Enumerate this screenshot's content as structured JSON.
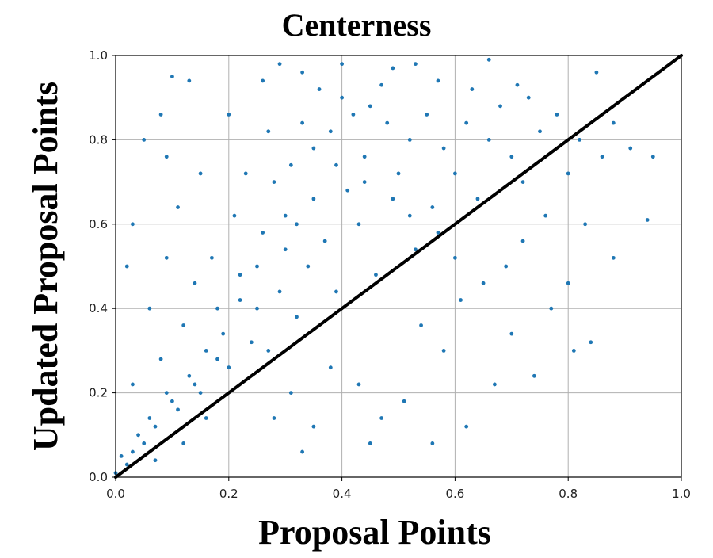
{
  "chart_data": {
    "type": "scatter",
    "title": "Centerness",
    "xlabel": "Proposal Points",
    "ylabel": "Updated Proposal Points",
    "xlim": [
      0.0,
      1.0
    ],
    "ylim": [
      0.0,
      1.0
    ],
    "xticks": [
      "0.0",
      "0.2",
      "0.4",
      "0.6",
      "0.8",
      "1.0"
    ],
    "yticks": [
      "0.0",
      "0.2",
      "0.4",
      "0.6",
      "0.8",
      "1.0"
    ],
    "grid": true,
    "colors": {
      "points": "#1f77b4",
      "reference_line": "#000000",
      "grid": "#b0b0b0"
    },
    "reference_line": {
      "x": [
        0.0,
        1.0
      ],
      "y": [
        0.0,
        1.0
      ]
    },
    "series": [
      {
        "points": [
          [
            0.42,
            0.86
          ],
          [
            0.38,
            0.82
          ],
          [
            0.45,
            0.88
          ],
          [
            0.35,
            0.78
          ],
          [
            0.48,
            0.84
          ],
          [
            0.31,
            0.74
          ],
          [
            0.52,
            0.8
          ],
          [
            0.4,
            0.9
          ],
          [
            0.28,
            0.7
          ],
          [
            0.55,
            0.86
          ],
          [
            0.36,
            0.92
          ],
          [
            0.44,
            0.76
          ],
          [
            0.33,
            0.84
          ],
          [
            0.58,
            0.78
          ],
          [
            0.47,
            0.93
          ],
          [
            0.3,
            0.62
          ],
          [
            0.41,
            0.68
          ],
          [
            0.26,
            0.58
          ],
          [
            0.5,
            0.72
          ],
          [
            0.37,
            0.56
          ],
          [
            0.22,
            0.48
          ],
          [
            0.34,
            0.5
          ],
          [
            0.29,
            0.44
          ],
          [
            0.43,
            0.6
          ],
          [
            0.25,
            0.4
          ],
          [
            0.19,
            0.34
          ],
          [
            0.32,
            0.38
          ],
          [
            0.16,
            0.3
          ],
          [
            0.13,
            0.24
          ],
          [
            0.24,
            0.32
          ],
          [
            0.1,
            0.18
          ],
          [
            0.07,
            0.12
          ],
          [
            0.15,
            0.2
          ],
          [
            0.05,
            0.08
          ],
          [
            0.2,
            0.26
          ],
          [
            0.62,
            0.84
          ],
          [
            0.66,
            0.8
          ],
          [
            0.7,
            0.76
          ],
          [
            0.6,
            0.72
          ],
          [
            0.64,
            0.66
          ],
          [
            0.72,
            0.7
          ],
          [
            0.56,
            0.64
          ],
          [
            0.68,
            0.88
          ],
          [
            0.75,
            0.82
          ],
          [
            0.53,
            0.54
          ],
          [
            0.46,
            0.48
          ],
          [
            0.39,
            0.44
          ],
          [
            0.27,
            0.3
          ],
          [
            0.18,
            0.4
          ],
          [
            0.12,
            0.36
          ],
          [
            0.08,
            0.28
          ],
          [
            0.21,
            0.62
          ],
          [
            0.17,
            0.52
          ],
          [
            0.23,
            0.72
          ],
          [
            0.14,
            0.46
          ],
          [
            0.09,
            0.52
          ],
          [
            0.06,
            0.4
          ],
          [
            0.03,
            0.22
          ],
          [
            0.11,
            0.64
          ],
          [
            0.27,
            0.82
          ],
          [
            0.33,
            0.96
          ],
          [
            0.49,
            0.97
          ],
          [
            0.57,
            0.94
          ],
          [
            0.63,
            0.92
          ],
          [
            0.78,
            0.86
          ],
          [
            0.82,
            0.8
          ],
          [
            0.86,
            0.76
          ],
          [
            0.88,
            0.84
          ],
          [
            0.91,
            0.78
          ],
          [
            0.95,
            0.76
          ],
          [
            0.94,
            0.61
          ],
          [
            0.88,
            0.52
          ],
          [
            0.83,
            0.6
          ],
          [
            0.8,
            0.46
          ],
          [
            0.77,
            0.4
          ],
          [
            0.84,
            0.32
          ],
          [
            0.81,
            0.3
          ],
          [
            0.74,
            0.24
          ],
          [
            0.67,
            0.22
          ],
          [
            0.7,
            0.34
          ],
          [
            0.61,
            0.42
          ],
          [
            0.58,
            0.3
          ],
          [
            0.54,
            0.36
          ],
          [
            0.51,
            0.18
          ],
          [
            0.47,
            0.14
          ],
          [
            0.43,
            0.22
          ],
          [
            0.45,
            0.08
          ],
          [
            0.35,
            0.12
          ],
          [
            0.33,
            0.06
          ],
          [
            0.38,
            0.26
          ],
          [
            0.62,
            0.12
          ],
          [
            0.56,
            0.08
          ],
          [
            0.31,
            0.2
          ],
          [
            0.28,
            0.14
          ],
          [
            0.08,
            0.86
          ],
          [
            0.03,
            0.6
          ],
          [
            0.02,
            0.5
          ],
          [
            0.01,
            0.05
          ],
          [
            0.02,
            0.03
          ],
          [
            0.0,
            0.01
          ],
          [
            0.1,
            0.95
          ],
          [
            0.13,
            0.94
          ],
          [
            0.05,
            0.8
          ],
          [
            0.15,
            0.72
          ],
          [
            0.09,
            0.76
          ],
          [
            0.2,
            0.86
          ],
          [
            0.26,
            0.94
          ],
          [
            0.29,
            0.98
          ],
          [
            0.4,
            0.98
          ],
          [
            0.53,
            0.98
          ],
          [
            0.66,
            0.99
          ],
          [
            0.71,
            0.93
          ],
          [
            0.73,
            0.9
          ],
          [
            0.85,
            0.96
          ],
          [
            0.8,
            0.72
          ],
          [
            0.76,
            0.62
          ],
          [
            0.72,
            0.56
          ],
          [
            0.69,
            0.5
          ],
          [
            0.65,
            0.46
          ],
          [
            0.6,
            0.52
          ],
          [
            0.57,
            0.58
          ],
          [
            0.52,
            0.62
          ],
          [
            0.49,
            0.66
          ],
          [
            0.44,
            0.7
          ],
          [
            0.39,
            0.74
          ],
          [
            0.35,
            0.66
          ],
          [
            0.32,
            0.6
          ],
          [
            0.3,
            0.54
          ],
          [
            0.25,
            0.5
          ],
          [
            0.22,
            0.42
          ],
          [
            0.18,
            0.28
          ],
          [
            0.14,
            0.22
          ],
          [
            0.11,
            0.16
          ],
          [
            0.09,
            0.2
          ],
          [
            0.06,
            0.14
          ],
          [
            0.04,
            0.1
          ],
          [
            0.03,
            0.06
          ],
          [
            0.07,
            0.04
          ],
          [
            0.12,
            0.08
          ],
          [
            0.16,
            0.14
          ]
        ]
      }
    ]
  }
}
